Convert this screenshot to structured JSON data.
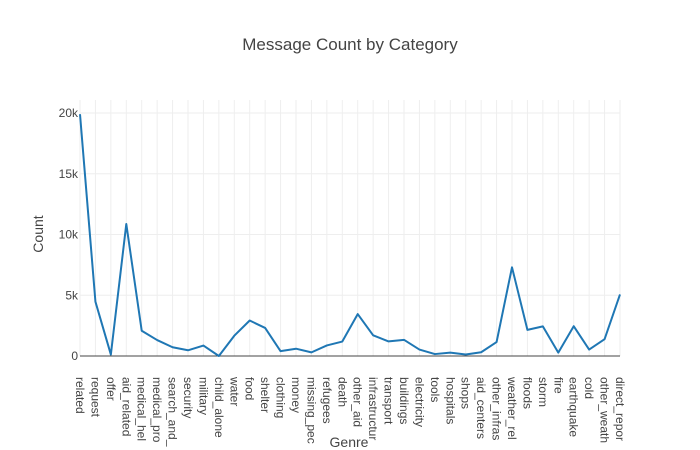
{
  "chart_data": {
    "type": "line",
    "title": "Message Count by Category",
    "xlabel": "Genre",
    "ylabel": "Count",
    "ylim": [
      0,
      20000
    ],
    "yticks": [
      0,
      5000,
      10000,
      15000,
      20000
    ],
    "ytick_labels": [
      "0",
      "5k",
      "10k",
      "15k",
      "20k"
    ],
    "grid": true,
    "line_color": "#1f77b4",
    "categories": [
      "related",
      "request",
      "offer",
      "aid_related",
      "medical_hel",
      "medical_pro",
      "search_and_",
      "security",
      "military",
      "child_alone",
      "water",
      "food",
      "shelter",
      "clothing",
      "money",
      "missing_pec",
      "refugees",
      "death",
      "other_aid",
      "infrastructur",
      "transport",
      "buildings",
      "electricity",
      "tools",
      "hospitals",
      "shops",
      "aid_centers",
      "other_infras",
      "weather_rel",
      "floods",
      "storm",
      "fire",
      "earthquake",
      "cold",
      "other_weath",
      "direct_repor"
    ],
    "values": [
      19900,
      4470,
      120,
      10860,
      2080,
      1310,
      720,
      470,
      860,
      0,
      1670,
      2920,
      2310,
      400,
      600,
      300,
      870,
      1190,
      3450,
      1700,
      1200,
      1330,
      530,
      160,
      280,
      120,
      310,
      1150,
      7300,
      2150,
      2440,
      280,
      2450,
      530,
      1380,
      5070
    ]
  }
}
